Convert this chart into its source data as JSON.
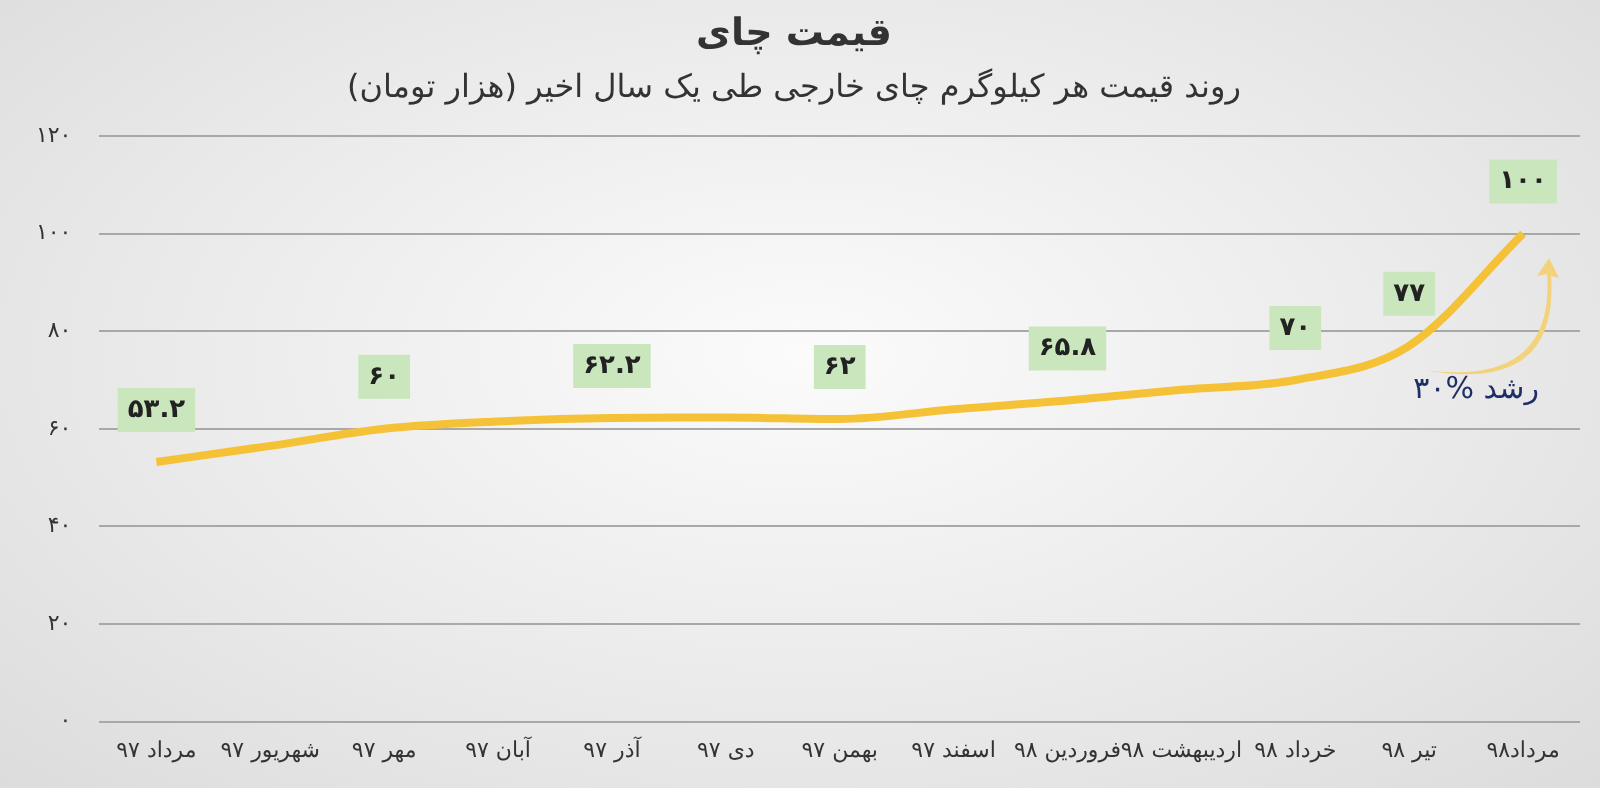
{
  "chart_data": {
    "type": "line",
    "title": "قیمت چای",
    "subtitle": "روند قیمت هر کیلوگرم چای خارجی طی یک سال اخیر (هزار تومان)",
    "categories": [
      "مرداد ۹۷",
      "شهریور ۹۷",
      "مهر ۹۷",
      "آبان ۹۷",
      "آذر ۹۷",
      "دی ۹۷",
      "بهمن ۹۷",
      "اسفند ۹۷",
      "فروردین ۹۸",
      "اردیبهشت ۹۸",
      "خرداد ۹۸",
      "تیر ۹۸",
      "مرداد۹۸"
    ],
    "series": [
      {
        "color": "#f5c136",
        "values": [
          53.2,
          56.5,
          60,
          61.5,
          62.2,
          62.3,
          62,
          64,
          65.8,
          68,
          70,
          77,
          100
        ],
        "value_labels": [
          "۵۳.۲",
          null,
          "۶۰",
          null,
          "۶۲.۲",
          null,
          "۶۲",
          null,
          "۶۵.۸",
          null,
          "۷۰",
          "۷۷",
          "۱۰۰"
        ]
      }
    ],
    "ylim": [
      0,
      120
    ],
    "yticks": [
      {
        "value": 0,
        "label": "۰"
      },
      {
        "value": 20,
        "label": "۲۰"
      },
      {
        "value": 40,
        "label": "۴۰"
      },
      {
        "value": 60,
        "label": "۶۰"
      },
      {
        "value": 80,
        "label": "۸۰"
      },
      {
        "value": 100,
        "label": "۱۰۰"
      },
      {
        "value": 120,
        "label": "۱۲۰"
      }
    ],
    "grid": "y",
    "legend": false,
    "marker": "none",
    "line_style": "solid",
    "annotations": [
      "۳۰% رشد"
    ]
  }
}
